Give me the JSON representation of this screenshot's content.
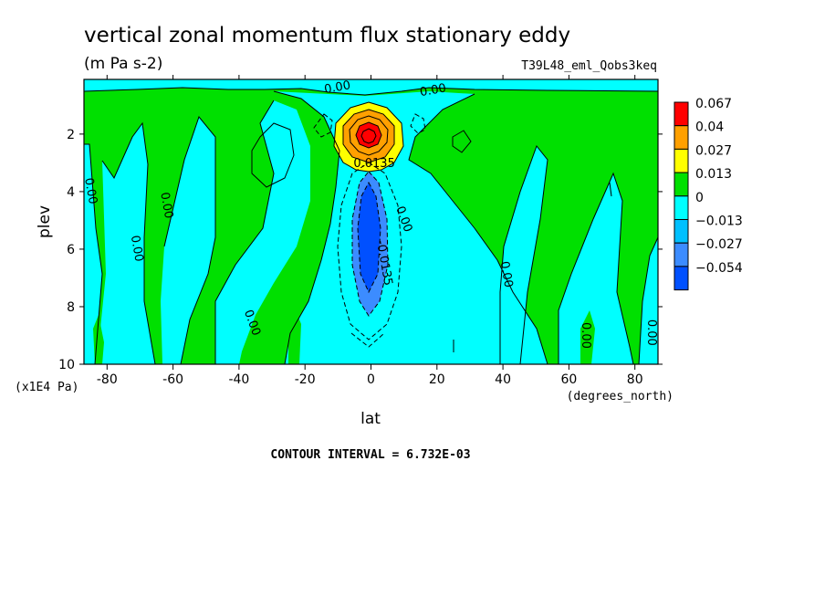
{
  "chart_data": {
    "type": "heatmap",
    "title": "vertical zonal momentum flux stationary eddy",
    "units": "(m Pa s-2)",
    "experiment": "T39L48_eml_Qobs3keq",
    "xlabel": "lat",
    "ylabel": "plev",
    "x_units": "(degrees_north)",
    "y_units": "(x1E4 Pa)",
    "xlim": [
      -87,
      87
    ],
    "ylim": [
      10,
      0.1
    ],
    "xticks": [
      "-80",
      "-60",
      "-40",
      "-20",
      "0",
      "20",
      "40",
      "60",
      "80"
    ],
    "yticks": [
      "2",
      "4",
      "6",
      "8",
      "10"
    ],
    "colorbar": {
      "levels": [
        "0.067",
        "0.04",
        "0.027",
        "0.013",
        "0",
        "−0.013",
        "−0.027",
        "−0.054"
      ],
      "colors": [
        "#ff0000",
        "#ffa000",
        "#ffff00",
        "#00e000",
        "#00ffff",
        "#00c0ff",
        "#3c8cff",
        "#0050ff"
      ]
    },
    "contour_interval_text": "CONTOUR INTERVAL = 6.732E-03",
    "contour_labels": [
      {
        "text": "0.00",
        "x": -86,
        "y": 4.0,
        "rot": 80
      },
      {
        "text": "0.00",
        "x": -63,
        "y": 4.5,
        "rot": 80
      },
      {
        "text": "0.00",
        "x": -72,
        "y": 6.0,
        "rot": 80
      },
      {
        "text": "0.00",
        "x": -37,
        "y": 8.6,
        "rot": 70
      },
      {
        "text": "0.00",
        "x": -10,
        "y": 0.5,
        "rot": -10
      },
      {
        "text": "0.00",
        "x": 19,
        "y": 0.6,
        "rot": -10
      },
      {
        "text": "0.0135",
        "x": 1,
        "y": 3.15,
        "rot": 0
      },
      {
        "text": "0.00",
        "x": 9,
        "y": 5.0,
        "rot": 70
      },
      {
        "text": "-0.0135",
        "x": 3,
        "y": 6.5,
        "rot": 80
      },
      {
        "text": "0.00",
        "x": 40,
        "y": 6.9,
        "rot": 80
      },
      {
        "text": "0.00",
        "x": 64,
        "y": 9.0,
        "rot": 90
      },
      {
        "text": "0.00",
        "x": 84,
        "y": 8.9,
        "rot": 90
      }
    ]
  }
}
